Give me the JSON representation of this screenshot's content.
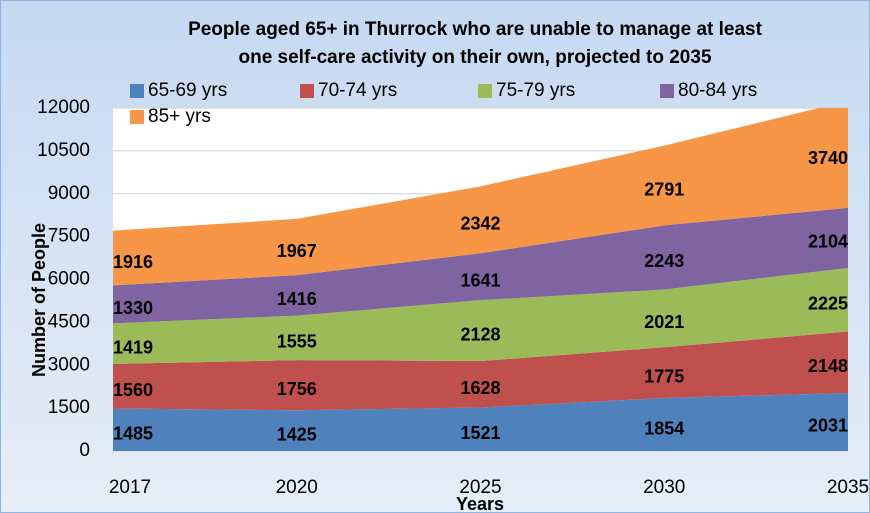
{
  "chart_data": {
    "type": "stacked_area",
    "title": [
      "People aged 65+ in Thurrock who are unable to manage at least",
      "one self-care activity on their own, projected to 2035"
    ],
    "x_label": "Years",
    "y_label": "Number of People",
    "categories": [
      "2017",
      "2020",
      "2025",
      "2030",
      "2035"
    ],
    "series": [
      {
        "name": "65-69 yrs",
        "color": "#4f81bd",
        "values": [
          1485,
          1425,
          1521,
          1854,
          2031
        ]
      },
      {
        "name": "70-74 yrs",
        "color": "#c0504d",
        "values": [
          1560,
          1756,
          1628,
          1775,
          2148
        ]
      },
      {
        "name": "75-79 yrs",
        "color": "#9bbb59",
        "values": [
          1419,
          1555,
          2128,
          2021,
          2225
        ]
      },
      {
        "name": "80-84 yrs",
        "color": "#8064a2",
        "values": [
          1330,
          1416,
          1641,
          2243,
          2104
        ]
      },
      {
        "name": "85+ yrs",
        "color": "#f79646",
        "values": [
          1916,
          1967,
          2342,
          2791,
          3740
        ]
      }
    ],
    "ylim": [
      0,
      12000
    ],
    "yticks": [
      0,
      1500,
      3000,
      4500,
      6000,
      7500,
      9000,
      10500,
      12000
    ],
    "grid": true
  }
}
